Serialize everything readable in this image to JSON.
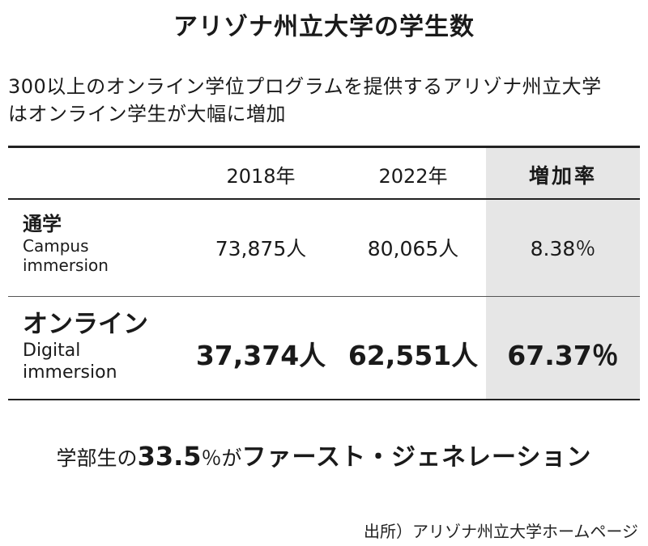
{
  "title": "アリゾナ州立大学の学生数",
  "subtitle": {
    "line1": "300以上のオンライン学位プログラムを提供するアリゾナ州立大学",
    "line2": "はオンライン学生が大幅に増加"
  },
  "table": {
    "headers": [
      "2018年",
      "2022年",
      "増加率"
    ],
    "rows": [
      {
        "label_jp": "通学",
        "label_en_1": "Campus",
        "label_en_2": "immersion",
        "y2018": "73,875人",
        "y2022": "80,065人",
        "rate": "8.38％"
      },
      {
        "label_jp": "オンライン",
        "label_en_1": "Digital",
        "label_en_2": "immersion",
        "y2018": "37,374人",
        "y2022": "62,551人",
        "rate": "67.37％"
      }
    ],
    "highlight_color": "#e6e6e6"
  },
  "note": {
    "prefix": "学部生の",
    "number": "33.5",
    "mid": "％が",
    "emphasis": "ファースト・ジェネレーション"
  },
  "source": "出所）アリゾナ州立大学ホームページ"
}
